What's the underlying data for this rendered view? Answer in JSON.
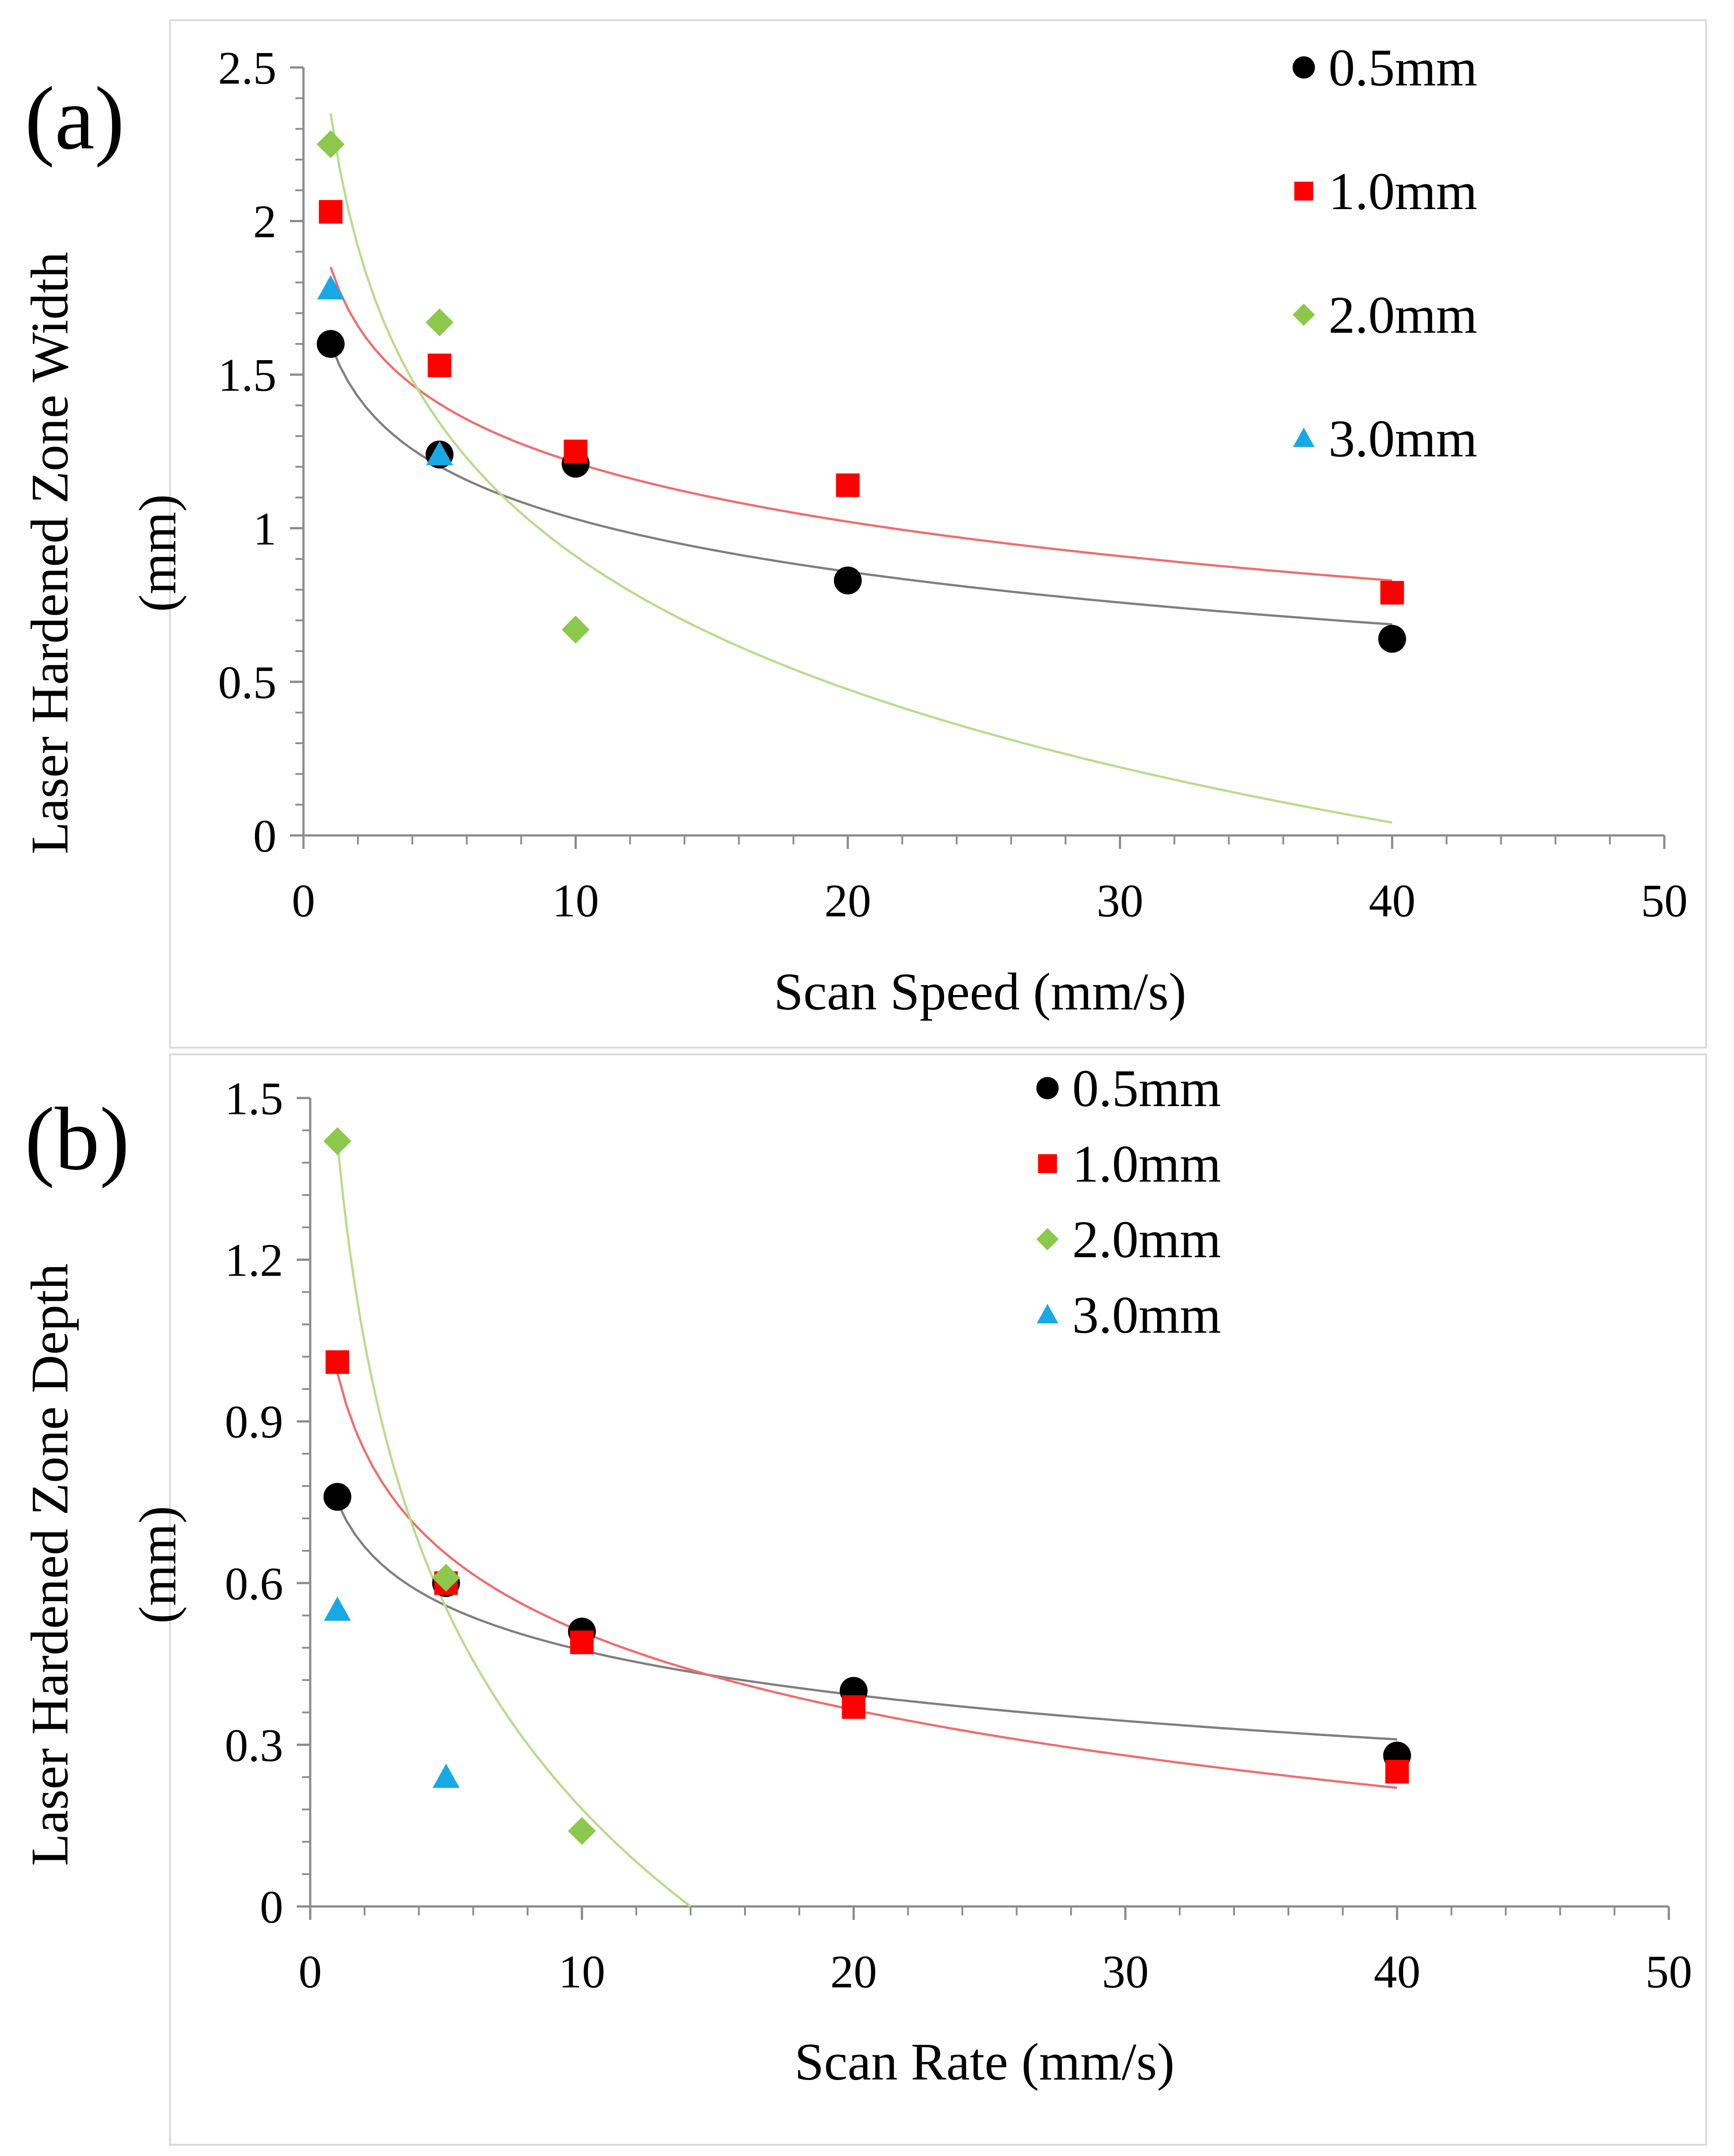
{
  "figure": {
    "description_free": true
  },
  "colors": {
    "s05": "#000000",
    "s10": "#ff0000",
    "s20": "#8cc84b",
    "s30": "#17a9e6",
    "fit05": "#7f7f7f",
    "fit10": "#f26b6b",
    "fit20": "#b6dc8c",
    "axis": "#8c8c8c"
  },
  "chart_data": [
    {
      "type": "scatter",
      "panel_label": "(a)",
      "xlabel": "Scan Speed (mm/s)",
      "ylabel_line1": "Laser Hardened Zone Width",
      "ylabel_line2": "(mm)",
      "xlim": [
        0,
        50
      ],
      "ylim": [
        0,
        2.5
      ],
      "xticks": [
        0,
        10,
        20,
        30,
        40,
        50
      ],
      "xtick_labels": [
        "0",
        "10",
        "20",
        "30",
        "40",
        "50"
      ],
      "yticks": [
        0,
        0.5,
        1,
        1.5,
        2,
        2.5
      ],
      "ytick_labels": [
        "0",
        "0.5",
        "1",
        "1.5",
        "2",
        "2.5"
      ],
      "legend": [
        {
          "label": "0.5mm",
          "marker": "circle",
          "color": "#000000"
        },
        {
          "label": "1.0mm",
          "marker": "square",
          "color": "#ff0000"
        },
        {
          "label": "2.0mm",
          "marker": "diamond",
          "color": "#8cc84b"
        },
        {
          "label": "3.0mm",
          "marker": "triangle",
          "color": "#17a9e6"
        }
      ],
      "series": [
        {
          "name": "0.5mm",
          "marker": "circle",
          "color": "#000000",
          "x": [
            1,
            5,
            10,
            20,
            40
          ],
          "y": [
            1.6,
            1.24,
            1.21,
            0.83,
            0.64
          ]
        },
        {
          "name": "1.0mm",
          "marker": "square",
          "color": "#ff0000",
          "x": [
            1,
            5,
            10,
            20,
            40
          ],
          "y": [
            2.03,
            1.53,
            1.25,
            1.14,
            0.79
          ]
        },
        {
          "name": "2.0mm",
          "marker": "diamond",
          "color": "#8cc84b",
          "x": [
            1,
            5,
            10
          ],
          "y": [
            2.25,
            1.67,
            0.67
          ]
        },
        {
          "name": "3.0mm",
          "marker": "triangle",
          "color": "#17a9e6",
          "x": [
            1,
            5
          ],
          "y": [
            1.78,
            1.24
          ]
        }
      ],
      "trendlines": [
        {
          "name": "0.5mm",
          "type": "log",
          "a": 1.6,
          "b": -0.2475,
          "x_range": [
            1,
            40
          ],
          "color": "#7f7f7f"
        },
        {
          "name": "1.0mm",
          "type": "log",
          "a": 1.85,
          "b": -0.2766,
          "x_range": [
            1,
            40
          ],
          "color": "#f26b6b"
        },
        {
          "name": "2.0mm",
          "type": "log",
          "a": 2.35,
          "b": -0.6257,
          "x_range": [
            1,
            40
          ],
          "color": "#b6dc8c"
        }
      ]
    },
    {
      "type": "scatter",
      "panel_label": "(b)",
      "xlabel": "Scan Rate (mm/s)",
      "ylabel_line1": "Laser Hardened Zone Depth",
      "ylabel_line2": "(mm)",
      "xlim": [
        0,
        50
      ],
      "ylim": [
        0,
        1.5
      ],
      "xticks": [
        0,
        10,
        20,
        30,
        40,
        50
      ],
      "xtick_labels": [
        "0",
        "10",
        "20",
        "30",
        "40",
        "50"
      ],
      "yticks": [
        0,
        0.3,
        0.6,
        0.9,
        1.2,
        1.5
      ],
      "ytick_labels": [
        "0",
        "0.3",
        "0.6",
        "0.9",
        "1.2",
        "1.5"
      ],
      "legend": [
        {
          "label": "0.5mm",
          "marker": "circle",
          "color": "#000000"
        },
        {
          "label": "1.0mm",
          "marker": "square",
          "color": "#ff0000"
        },
        {
          "label": "2.0mm",
          "marker": "diamond",
          "color": "#8cc84b"
        },
        {
          "label": "3.0mm",
          "marker": "triangle",
          "color": "#17a9e6"
        }
      ],
      "series": [
        {
          "name": "0.5mm",
          "marker": "circle",
          "color": "#000000",
          "x": [
            1,
            5,
            10,
            20,
            40
          ],
          "y": [
            0.76,
            0.6,
            0.51,
            0.4,
            0.28
          ]
        },
        {
          "name": "1.0mm",
          "marker": "square",
          "color": "#ff0000",
          "x": [
            1,
            5,
            10,
            20,
            40
          ],
          "y": [
            1.01,
            0.6,
            0.49,
            0.37,
            0.25
          ]
        },
        {
          "name": "2.0mm",
          "marker": "diamond",
          "color": "#8cc84b",
          "x": [
            1,
            5,
            10
          ],
          "y": [
            1.42,
            0.61,
            0.14
          ]
        },
        {
          "name": "3.0mm",
          "marker": "triangle",
          "color": "#17a9e6",
          "x": [
            1,
            5
          ],
          "y": [
            0.55,
            0.24
          ]
        }
      ],
      "trendlines": [
        {
          "name": "0.5mm",
          "type": "log",
          "a": 0.75,
          "b": -0.1193,
          "x_range": [
            1,
            40
          ],
          "color": "#7f7f7f"
        },
        {
          "name": "1.0mm",
          "type": "log",
          "a": 0.99,
          "b": -0.2087,
          "x_range": [
            1,
            40
          ],
          "color": "#f26b6b"
        },
        {
          "name": "2.0mm",
          "type": "log",
          "a": 1.42,
          "b": -0.5381,
          "x_range": [
            1,
            14
          ],
          "color": "#b6dc8c"
        }
      ]
    }
  ]
}
